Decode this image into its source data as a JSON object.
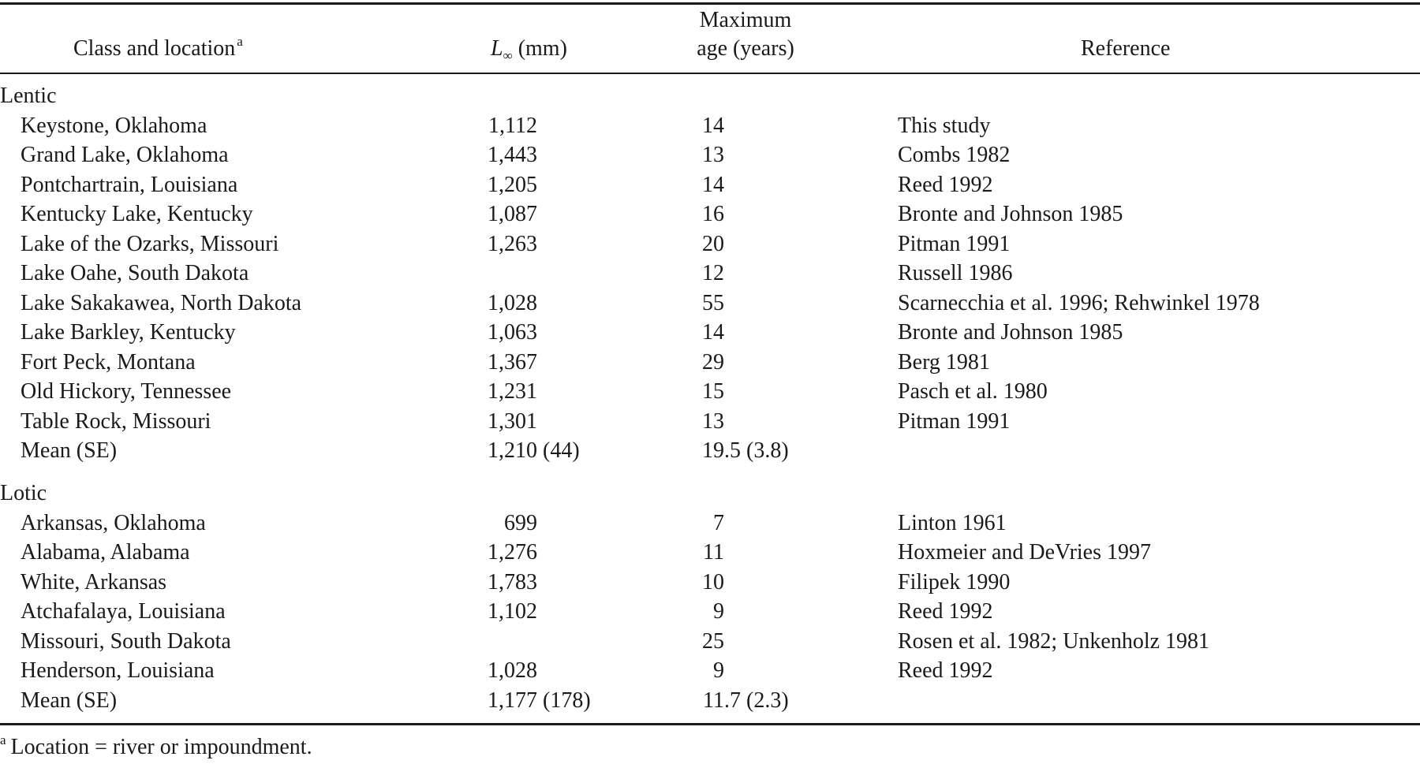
{
  "headers": {
    "location": "Class and location",
    "location_note_marker": "a",
    "linf_symbol": "L",
    "linf_subscript": "∞",
    "linf_unit": "(mm)",
    "age_line1": "Maximum",
    "age_line2": "age (years)",
    "reference": "Reference"
  },
  "sections": [
    {
      "label": "Lentic",
      "rows": [
        {
          "location": "Keystone, Oklahoma",
          "linf": "1,112",
          "age": "14",
          "reference": "This study"
        },
        {
          "location": "Grand Lake, Oklahoma",
          "linf": "1,443",
          "age": "13",
          "reference": "Combs 1982"
        },
        {
          "location": "Pontchartrain, Louisiana",
          "linf": "1,205",
          "age": "14",
          "reference": "Reed 1992"
        },
        {
          "location": "Kentucky Lake, Kentucky",
          "linf": "1,087",
          "age": "16",
          "reference": "Bronte and Johnson 1985"
        },
        {
          "location": "Lake of the Ozarks, Missouri",
          "linf": "1,263",
          "age": "20",
          "reference": "Pitman 1991"
        },
        {
          "location": "Lake Oahe, South Dakota",
          "linf": "",
          "age": "12",
          "reference": "Russell 1986"
        },
        {
          "location": "Lake Sakakawea, North Dakota",
          "linf": "1,028",
          "age": "55",
          "reference": "Scarnecchia et al. 1996; Rehwinkel 1978"
        },
        {
          "location": "Lake Barkley, Kentucky",
          "linf": "1,063",
          "age": "14",
          "reference": "Bronte and Johnson 1985"
        },
        {
          "location": "Fort Peck, Montana",
          "linf": "1,367",
          "age": "29",
          "reference": "Berg 1981"
        },
        {
          "location": "Old Hickory, Tennessee",
          "linf": "1,231",
          "age": "15",
          "reference": "Pasch et al. 1980"
        },
        {
          "location": "Table Rock, Missouri",
          "linf": "1,301",
          "age": "13",
          "reference": "Pitman 1991"
        },
        {
          "location": "Mean (SE)",
          "linf": "1,210 (44)",
          "age": "19.5 (3.8)",
          "reference": ""
        }
      ]
    },
    {
      "label": "Lotic",
      "rows": [
        {
          "location": "Arkansas, Oklahoma",
          "linf": "699",
          "age": "7",
          "reference": "Linton 1961"
        },
        {
          "location": "Alabama, Alabama",
          "linf": "1,276",
          "age": "11",
          "reference": "Hoxmeier and DeVries 1997"
        },
        {
          "location": "White, Arkansas",
          "linf": "1,783",
          "age": "10",
          "reference": "Filipek 1990"
        },
        {
          "location": "Atchafalaya, Louisiana",
          "linf": "1,102",
          "age": "9",
          "reference": "Reed 1992"
        },
        {
          "location": "Missouri, South Dakota",
          "linf": "",
          "age": "25",
          "reference": "Rosen et al. 1982; Unkenholz 1981"
        },
        {
          "location": "Henderson, Louisiana",
          "linf": "1,028",
          "age": "9",
          "reference": "Reed 1992"
        },
        {
          "location": "Mean (SE)",
          "linf": "1,177 (178)",
          "age": "11.7 (2.3)",
          "reference": ""
        }
      ]
    }
  ],
  "footnote": {
    "marker": "a",
    "text": "Location = river or impoundment."
  }
}
